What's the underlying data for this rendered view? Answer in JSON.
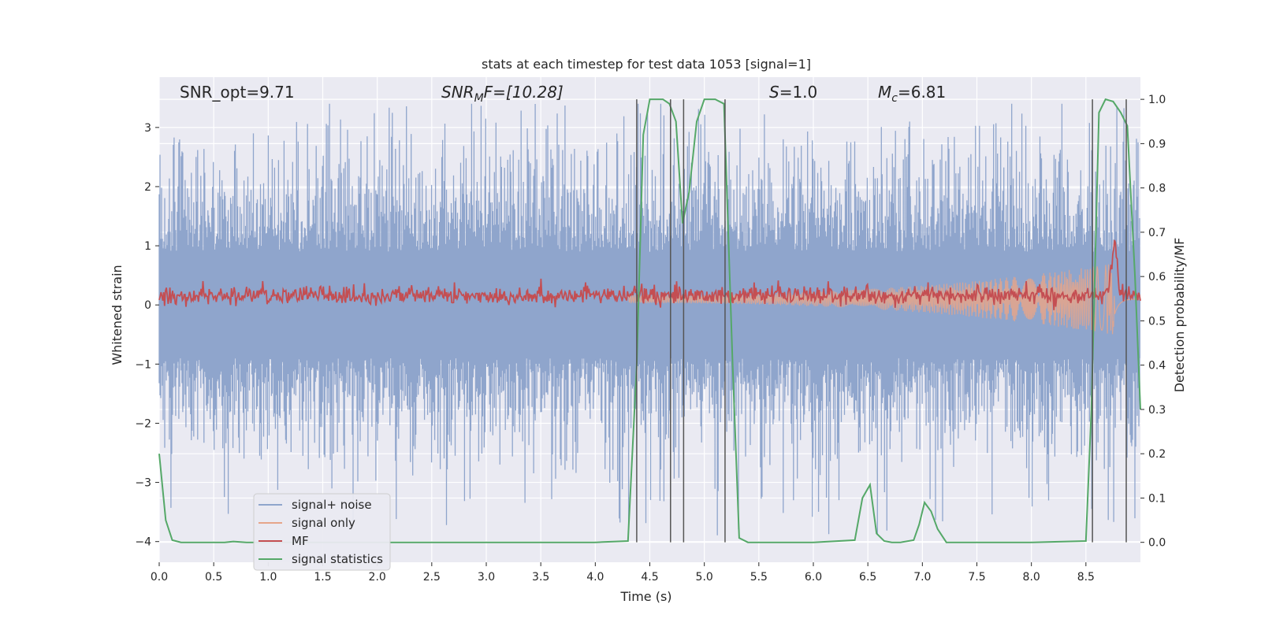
{
  "title": "stats at each timestep for test data 1053 [signal=1]",
  "annotations": {
    "snr_opt": "SNR_opt=9.71",
    "snr_mf_base": "SNR",
    "snr_mf_sub": "M",
    "snr_mf_rest": "F=[10.28]",
    "s_value": "=1.0",
    "s_symbol": "S",
    "mc_base": "M",
    "mc_sub": "c",
    "mc_rest": "=6.81"
  },
  "colors": {
    "axes_bg": "#EAEAF2",
    "grid": "#FFFFFF",
    "signal_noise": "#8FA5CC",
    "signal_only": "#E6A58A",
    "mf": "#C44E52",
    "signal_statistics": "#55A868",
    "vlines": "#555555"
  },
  "chart_data": {
    "type": "line",
    "title": "stats at each timestep for test data 1053 [signal=1]",
    "xlabel": "Time (s)",
    "ylabel_left": "Whitened strain",
    "ylabel_right": "Detection probability/MF",
    "xlim": [
      0.0,
      9.0
    ],
    "ylim_left": [
      -4.35,
      3.85
    ],
    "ylim_right": [
      -0.045,
      1.05
    ],
    "x_ticks": [
      "0.0",
      "0.5",
      "1.0",
      "1.5",
      "2.0",
      "2.5",
      "3.0",
      "3.5",
      "4.0",
      "4.5",
      "5.0",
      "5.5",
      "6.0",
      "6.5",
      "7.0",
      "7.5",
      "8.0",
      "8.5"
    ],
    "y_ticks_left": [
      "3",
      "2",
      "1",
      "0",
      "−1",
      "−2",
      "−3",
      "−4"
    ],
    "y_ticks_right": [
      "1.0",
      "0.9",
      "0.8",
      "0.7",
      "0.6",
      "0.5",
      "0.4",
      "0.3",
      "0.2",
      "0.1",
      "0.0"
    ],
    "legend": {
      "placement": "lower-left",
      "entries": [
        "signal+ noise",
        "signal only",
        "MF",
        "signal statistics"
      ]
    },
    "series": [
      {
        "name": "signal+ noise",
        "axis": "left",
        "kind": "noise",
        "typical_range": [
          -2.0,
          2.5
        ],
        "extreme_range": [
          -4.0,
          3.4
        ]
      },
      {
        "name": "signal only",
        "axis": "left",
        "kind": "chirp",
        "start": 4.3,
        "peak": 8.75,
        "peak_amplitude": 0.6
      },
      {
        "name": "MF",
        "axis": "left",
        "kind": "noisy-baseline",
        "mean": 0.15,
        "peak_x": 8.76,
        "peak_y": 1.0
      },
      {
        "name": "signal statistics",
        "axis": "right",
        "x": [
          0.0,
          0.06,
          0.12,
          0.2,
          0.4,
          0.6,
          0.68,
          0.8,
          1.0,
          2.0,
          3.0,
          4.0,
          4.3,
          4.38,
          4.44,
          4.5,
          4.62,
          4.68,
          4.74,
          4.8,
          4.86,
          4.93,
          5.0,
          5.1,
          5.18,
          5.26,
          5.32,
          5.4,
          5.6,
          6.0,
          6.38,
          6.45,
          6.52,
          6.58,
          6.65,
          6.72,
          6.8,
          6.92,
          6.97,
          7.02,
          7.08,
          7.14,
          7.22,
          7.3,
          7.5,
          8.0,
          8.5,
          8.55,
          8.62,
          8.68,
          8.75,
          8.82,
          8.88,
          8.95,
          9.0
        ],
        "y": [
          0.2,
          0.05,
          0.005,
          0.0,
          0.0,
          0.0,
          0.002,
          0.0,
          0.0,
          0.0,
          0.0,
          0.0,
          0.003,
          0.4,
          0.92,
          1.0,
          1.0,
          0.99,
          0.95,
          0.72,
          0.79,
          0.95,
          1.0,
          1.0,
          0.99,
          0.4,
          0.01,
          0.0,
          0.0,
          0.0,
          0.005,
          0.1,
          0.13,
          0.02,
          0.003,
          0.0,
          0.0,
          0.005,
          0.04,
          0.09,
          0.07,
          0.03,
          0.0,
          0.0,
          0.0,
          0.0,
          0.003,
          0.3,
          0.97,
          1.0,
          0.995,
          0.97,
          0.94,
          0.6,
          0.3
        ]
      },
      {
        "name": "detection boundaries",
        "axis": "right",
        "kind": "vlines",
        "x": [
          4.38,
          4.69,
          4.81,
          5.19,
          8.56,
          8.87
        ],
        "ymin": 0.0,
        "ymax": 1.0
      }
    ]
  }
}
